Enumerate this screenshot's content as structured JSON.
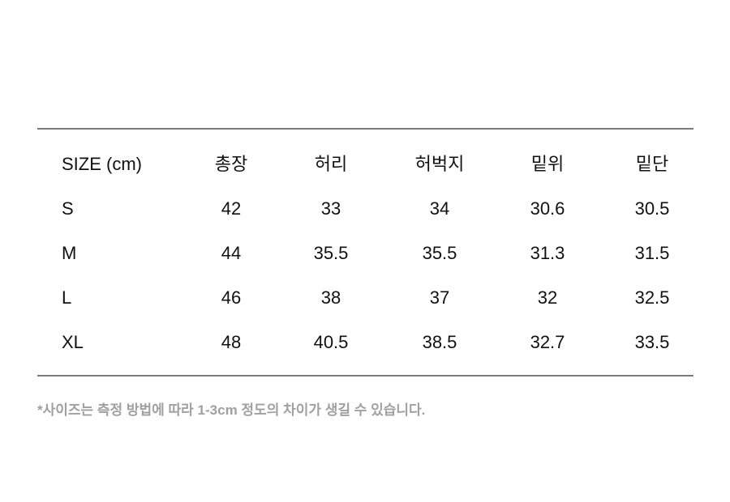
{
  "table": {
    "headers": [
      "SIZE (cm)",
      "총장",
      "허리",
      "허벅지",
      "밑위",
      "밑단"
    ],
    "rows": [
      [
        "S",
        "42",
        "33",
        "34",
        "30.6",
        "30.5"
      ],
      [
        "M",
        "44",
        "35.5",
        "35.5",
        "31.3",
        "31.5"
      ],
      [
        "L",
        "46",
        "38",
        "37",
        "32",
        "32.5"
      ],
      [
        "XL",
        "48",
        "40.5",
        "38.5",
        "32.7",
        "33.5"
      ]
    ]
  },
  "note": "*사이즈는 측정 방법에 따라 1-3cm 정도의 차이가 생길 수 있습니다."
}
